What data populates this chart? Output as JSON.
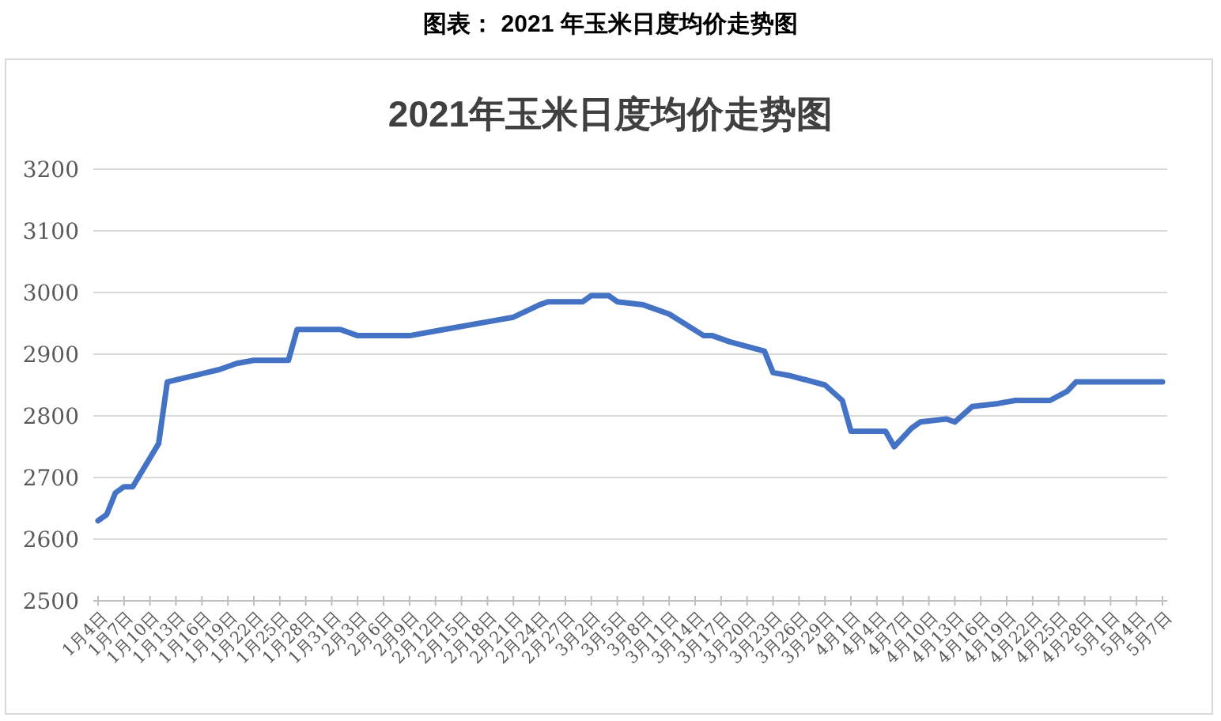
{
  "chart_data": {
    "type": "line",
    "title": "2021年玉米日度均价走势图",
    "annotations": [
      "图表：  2021 年玉米日度均价走势图"
    ],
    "x": [
      "--01-04",
      "--01-05",
      "--01-06",
      "--01-07",
      "--01-08",
      "--01-11",
      "--01-12",
      "--01-15",
      "--01-18",
      "--01-20",
      "--01-22",
      "--01-26",
      "--01-27",
      "--02-01",
      "--02-03",
      "--02-09",
      "--02-13",
      "--02-19",
      "--02-21",
      "--02-24",
      "--02-25",
      "--03-01",
      "--03-02",
      "--03-04",
      "--03-05",
      "--03-08",
      "--03-11",
      "--03-15",
      "--03-16",
      "--03-18",
      "--03-22",
      "--03-23",
      "--03-25",
      "--03-29",
      "--03-31",
      "--04-01",
      "--04-05",
      "--04-06",
      "--04-08",
      "--04-09",
      "--04-12",
      "--04-13",
      "--04-15",
      "--04-18",
      "--04-20",
      "--04-24",
      "--04-26",
      "--04-27",
      "--05-07"
    ],
    "values": [
      2630,
      2640,
      2675,
      2685,
      2685,
      2755,
      2855,
      2865,
      2875,
      2885,
      2890,
      2890,
      2940,
      2940,
      2930,
      2930,
      2940,
      2955,
      2960,
      2980,
      2985,
      2985,
      2995,
      2995,
      2985,
      2980,
      2965,
      2930,
      2930,
      2920,
      2905,
      2870,
      2865,
      2850,
      2825,
      2775,
      2775,
      2750,
      2780,
      2790,
      2795,
      2790,
      2815,
      2820,
      2825,
      2825,
      2840,
      2855,
      2855
    ],
    "color": "#4472c4",
    "xlim": [
      "--01-04",
      "--05-07"
    ],
    "xticks": [
      {
        "value": "--01-04",
        "label": "1月4日"
      },
      {
        "value": "--01-07",
        "label": "1月7日"
      },
      {
        "value": "--01-10",
        "label": "1月10日"
      },
      {
        "value": "--01-13",
        "label": "1月13日"
      },
      {
        "value": "--01-16",
        "label": "1月16日"
      },
      {
        "value": "--01-19",
        "label": "1月19日"
      },
      {
        "value": "--01-22",
        "label": "1月22日"
      },
      {
        "value": "--01-25",
        "label": "1月25日"
      },
      {
        "value": "--01-28",
        "label": "1月28日"
      },
      {
        "value": "--01-31",
        "label": "1月31日"
      },
      {
        "value": "--02-03",
        "label": "2月3日"
      },
      {
        "value": "--02-06",
        "label": "2月6日"
      },
      {
        "value": "--02-09",
        "label": "2月9日"
      },
      {
        "value": "--02-12",
        "label": "2月12日"
      },
      {
        "value": "--02-15",
        "label": "2月15日"
      },
      {
        "value": "--02-18",
        "label": "2月18日"
      },
      {
        "value": "--02-21",
        "label": "2月21日"
      },
      {
        "value": "--02-24",
        "label": "2月24日"
      },
      {
        "value": "--02-27",
        "label": "2月27日"
      },
      {
        "value": "--03-02",
        "label": "3月2日"
      },
      {
        "value": "--03-05",
        "label": "3月5日"
      },
      {
        "value": "--03-08",
        "label": "3月8日"
      },
      {
        "value": "--03-11",
        "label": "3月11日"
      },
      {
        "value": "--03-14",
        "label": "3月14日"
      },
      {
        "value": "--03-17",
        "label": "3月17日"
      },
      {
        "value": "--03-20",
        "label": "3月20日"
      },
      {
        "value": "--03-23",
        "label": "3月23日"
      },
      {
        "value": "--03-26",
        "label": "3月26日"
      },
      {
        "value": "--03-29",
        "label": "3月29日"
      },
      {
        "value": "--04-01",
        "label": "4月1日"
      },
      {
        "value": "--04-04",
        "label": "4月4日"
      },
      {
        "value": "--04-07",
        "label": "4月7日"
      },
      {
        "value": "--04-10",
        "label": "4月10日"
      },
      {
        "value": "--04-13",
        "label": "4月13日"
      },
      {
        "value": "--04-16",
        "label": "4月16日"
      },
      {
        "value": "--04-19",
        "label": "4月19日"
      },
      {
        "value": "--04-22",
        "label": "4月22日"
      },
      {
        "value": "--04-25",
        "label": "4月25日"
      },
      {
        "value": "--04-28",
        "label": "4月28日"
      },
      {
        "value": "--05-01",
        "label": "5月1日"
      },
      {
        "value": "--05-04",
        "label": "5月4日"
      },
      {
        "value": "--05-07",
        "label": "5月7日"
      }
    ],
    "ylim": [
      2500,
      3200
    ],
    "yticks": [
      2500,
      2600,
      2700,
      2800,
      2900,
      3000,
      3100,
      3200
    ],
    "grid": "y"
  }
}
